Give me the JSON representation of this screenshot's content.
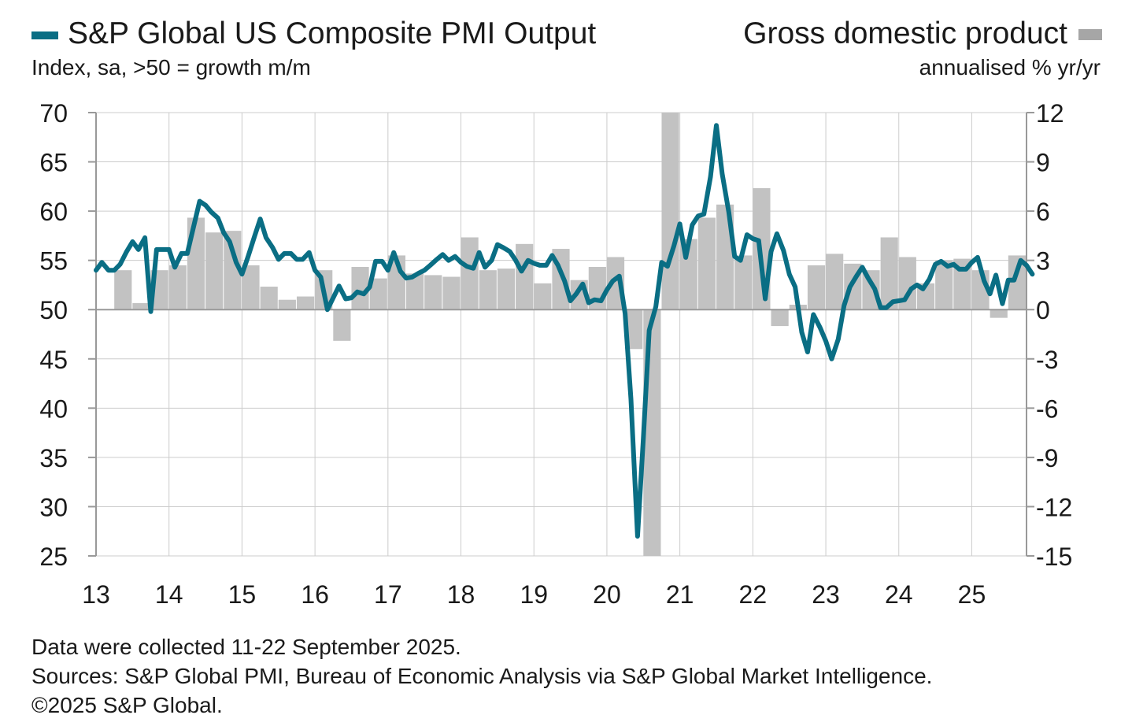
{
  "legend": {
    "line_label": "S&P Global US Composite PMI Output",
    "bar_label": "Gross domestic product",
    "left_unit": "Index, sa, >50 = growth m/m",
    "right_unit": "annualised % yr/yr"
  },
  "footer": {
    "line1": "Data were collected 11-22 September 2025.",
    "line2": "Sources: S&P Global PMI, Bureau of Economic Analysis via S&P Global Market Intelligence.",
    "line3": "©2025 S&P Global."
  },
  "colors": {
    "pmi_line": "#0a6e84",
    "gdp_bars": "#c2c2c2",
    "grid": "#cccccc",
    "axis": "#999999"
  },
  "chart_data": {
    "type": "bar+line",
    "x_range": [
      2013.0,
      2025.75
    ],
    "x_ticks": [
      {
        "value": 2013,
        "label": "13"
      },
      {
        "value": 2014,
        "label": "14"
      },
      {
        "value": 2015,
        "label": "15"
      },
      {
        "value": 2016,
        "label": "16"
      },
      {
        "value": 2017,
        "label": "17"
      },
      {
        "value": 2018,
        "label": "18"
      },
      {
        "value": 2019,
        "label": "19"
      },
      {
        "value": 2020,
        "label": "20"
      },
      {
        "value": 2021,
        "label": "21"
      },
      {
        "value": 2022,
        "label": "22"
      },
      {
        "value": 2023,
        "label": "23"
      },
      {
        "value": 2024,
        "label": "24"
      },
      {
        "value": 2025,
        "label": "25"
      }
    ],
    "y_left": {
      "min": 25,
      "max": 70,
      "ticks": [
        "70",
        "65",
        "60",
        "55",
        "50",
        "45",
        "40",
        "35",
        "30",
        "25"
      ]
    },
    "y_right": {
      "min": -15,
      "max": 12,
      "ticks": [
        "12",
        "9",
        "6",
        "3",
        "0",
        "-3",
        "-6",
        "-9",
        "-12",
        "-15"
      ]
    },
    "grid": true,
    "gdp_series": {
      "name": "Gross domestic product",
      "axis": "right",
      "quarters": [
        {
          "x": 2013.0,
          "value": 0.0
        },
        {
          "x": 2013.25,
          "value": 2.4
        },
        {
          "x": 2013.5,
          "value": 0.4
        },
        {
          "x": 2013.75,
          "value": 2.4
        },
        {
          "x": 2014.0,
          "value": 2.7
        },
        {
          "x": 2014.25,
          "value": 5.6
        },
        {
          "x": 2014.5,
          "value": 4.7
        },
        {
          "x": 2014.75,
          "value": 4.8
        },
        {
          "x": 2015.0,
          "value": 2.7
        },
        {
          "x": 2015.25,
          "value": 1.4
        },
        {
          "x": 2015.5,
          "value": 0.6
        },
        {
          "x": 2015.75,
          "value": 0.8
        },
        {
          "x": 2016.0,
          "value": 2.4
        },
        {
          "x": 2016.25,
          "value": -1.9
        },
        {
          "x": 2016.5,
          "value": 2.6
        },
        {
          "x": 2016.75,
          "value": 1.9
        },
        {
          "x": 2017.0,
          "value": 3.3
        },
        {
          "x": 2017.25,
          "value": 2.2
        },
        {
          "x": 2017.5,
          "value": 2.1
        },
        {
          "x": 2017.75,
          "value": 2.0
        },
        {
          "x": 2018.0,
          "value": 4.4
        },
        {
          "x": 2018.25,
          "value": 2.4
        },
        {
          "x": 2018.5,
          "value": 2.5
        },
        {
          "x": 2018.75,
          "value": 4.0
        },
        {
          "x": 2019.0,
          "value": 1.6
        },
        {
          "x": 2019.25,
          "value": 3.7
        },
        {
          "x": 2019.5,
          "value": 1.8
        },
        {
          "x": 2019.75,
          "value": 2.6
        },
        {
          "x": 2020.0,
          "value": 3.2
        },
        {
          "x": 2020.25,
          "value": -2.4
        },
        {
          "x": 2020.5,
          "value": -15.0
        },
        {
          "x": 2020.75,
          "value": 12.0
        },
        {
          "x": 2021.0,
          "value": 4.3
        },
        {
          "x": 2021.25,
          "value": 5.6
        },
        {
          "x": 2021.5,
          "value": 6.4
        },
        {
          "x": 2021.75,
          "value": 3.3
        },
        {
          "x": 2022.0,
          "value": 7.4
        },
        {
          "x": 2022.25,
          "value": -1.0
        },
        {
          "x": 2022.5,
          "value": 0.3
        },
        {
          "x": 2022.75,
          "value": 2.7
        },
        {
          "x": 2023.0,
          "value": 3.4
        },
        {
          "x": 2023.25,
          "value": 2.8
        },
        {
          "x": 2023.5,
          "value": 2.4
        },
        {
          "x": 2023.75,
          "value": 4.4
        },
        {
          "x": 2024.0,
          "value": 3.2
        },
        {
          "x": 2024.25,
          "value": 1.6
        },
        {
          "x": 2024.5,
          "value": 3.0
        },
        {
          "x": 2024.75,
          "value": 3.1
        },
        {
          "x": 2025.0,
          "value": 2.4
        },
        {
          "x": 2025.25,
          "value": -0.5
        },
        {
          "x": 2025.5,
          "value": 3.3
        }
      ]
    },
    "pmi_series": {
      "name": "S&P Global US Composite PMI Output",
      "axis": "left",
      "points": [
        [
          2013.0,
          54.0
        ],
        [
          2013.08,
          54.8
        ],
        [
          2013.17,
          54.0
        ],
        [
          2013.25,
          54.0
        ],
        [
          2013.33,
          54.6
        ],
        [
          2013.42,
          55.9
        ],
        [
          2013.5,
          56.9
        ],
        [
          2013.58,
          56.1
        ],
        [
          2013.67,
          57.3
        ],
        [
          2013.75,
          49.8
        ],
        [
          2013.83,
          56.1
        ],
        [
          2013.92,
          56.1
        ],
        [
          2014.0,
          56.1
        ],
        [
          2014.08,
          54.3
        ],
        [
          2014.17,
          55.7
        ],
        [
          2014.25,
          55.7
        ],
        [
          2014.33,
          58.2
        ],
        [
          2014.42,
          61.0
        ],
        [
          2014.5,
          60.6
        ],
        [
          2014.58,
          59.9
        ],
        [
          2014.67,
          59.3
        ],
        [
          2014.75,
          57.8
        ],
        [
          2014.83,
          56.9
        ],
        [
          2014.92,
          54.8
        ],
        [
          2015.0,
          53.6
        ],
        [
          2015.08,
          55.3
        ],
        [
          2015.17,
          57.4
        ],
        [
          2015.25,
          59.2
        ],
        [
          2015.33,
          57.3
        ],
        [
          2015.42,
          56.3
        ],
        [
          2015.5,
          55.1
        ],
        [
          2015.58,
          55.7
        ],
        [
          2015.67,
          55.7
        ],
        [
          2015.75,
          55.1
        ],
        [
          2015.83,
          55.1
        ],
        [
          2015.92,
          55.8
        ],
        [
          2016.0,
          54.0
        ],
        [
          2016.08,
          53.3
        ],
        [
          2016.17,
          50.0
        ],
        [
          2016.25,
          51.2
        ],
        [
          2016.33,
          52.4
        ],
        [
          2016.42,
          51.1
        ],
        [
          2016.5,
          51.2
        ],
        [
          2016.58,
          51.8
        ],
        [
          2016.67,
          51.6
        ],
        [
          2016.75,
          52.3
        ],
        [
          2016.83,
          54.9
        ],
        [
          2016.92,
          54.9
        ],
        [
          2017.0,
          54.0
        ],
        [
          2017.08,
          55.8
        ],
        [
          2017.17,
          53.9
        ],
        [
          2017.25,
          53.2
        ],
        [
          2017.33,
          53.3
        ],
        [
          2017.42,
          53.7
        ],
        [
          2017.5,
          54.0
        ],
        [
          2017.58,
          54.5
        ],
        [
          2017.67,
          55.1
        ],
        [
          2017.75,
          55.6
        ],
        [
          2017.83,
          55.0
        ],
        [
          2017.92,
          55.4
        ],
        [
          2018.0,
          54.8
        ],
        [
          2018.08,
          54.4
        ],
        [
          2018.17,
          54.2
        ],
        [
          2018.25,
          55.8
        ],
        [
          2018.33,
          54.3
        ],
        [
          2018.42,
          55.0
        ],
        [
          2018.5,
          56.6
        ],
        [
          2018.58,
          56.3
        ],
        [
          2018.67,
          55.9
        ],
        [
          2018.75,
          55.0
        ],
        [
          2018.83,
          53.9
        ],
        [
          2018.92,
          55.0
        ],
        [
          2019.0,
          54.7
        ],
        [
          2019.08,
          54.5
        ],
        [
          2019.17,
          54.5
        ],
        [
          2019.25,
          55.5
        ],
        [
          2019.33,
          54.5
        ],
        [
          2019.42,
          52.9
        ],
        [
          2019.5,
          50.9
        ],
        [
          2019.58,
          51.6
        ],
        [
          2019.67,
          52.6
        ],
        [
          2019.75,
          50.7
        ],
        [
          2019.83,
          51.0
        ],
        [
          2019.92,
          50.9
        ],
        [
          2020.0,
          52.0
        ],
        [
          2020.08,
          52.9
        ],
        [
          2020.17,
          53.4
        ],
        [
          2020.25,
          49.6
        ],
        [
          2020.33,
          40.9
        ],
        [
          2020.42,
          27.0
        ],
        [
          2020.5,
          37.0
        ],
        [
          2020.58,
          47.9
        ],
        [
          2020.67,
          50.3
        ],
        [
          2020.75,
          54.8
        ],
        [
          2020.83,
          54.4
        ],
        [
          2020.92,
          56.5
        ],
        [
          2021.0,
          58.7
        ],
        [
          2021.08,
          55.3
        ],
        [
          2021.17,
          58.6
        ],
        [
          2021.25,
          59.5
        ],
        [
          2021.33,
          59.7
        ],
        [
          2021.42,
          63.5
        ],
        [
          2021.5,
          68.7
        ],
        [
          2021.58,
          63.8
        ],
        [
          2021.67,
          59.9
        ],
        [
          2021.75,
          55.4
        ],
        [
          2021.83,
          55.0
        ],
        [
          2021.92,
          57.6
        ],
        [
          2022.0,
          57.2
        ],
        [
          2022.08,
          57.0
        ],
        [
          2022.17,
          51.1
        ],
        [
          2022.25,
          55.9
        ],
        [
          2022.33,
          57.7
        ],
        [
          2022.42,
          56.0
        ],
        [
          2022.5,
          53.6
        ],
        [
          2022.58,
          52.3
        ],
        [
          2022.67,
          47.7
        ],
        [
          2022.75,
          45.7
        ],
        [
          2022.83,
          49.5
        ],
        [
          2022.92,
          48.2
        ],
        [
          2023.0,
          46.8
        ],
        [
          2023.08,
          45.0
        ],
        [
          2023.17,
          47.0
        ],
        [
          2023.25,
          50.4
        ],
        [
          2023.33,
          52.3
        ],
        [
          2023.42,
          53.4
        ],
        [
          2023.5,
          54.3
        ],
        [
          2023.58,
          53.2
        ],
        [
          2023.67,
          52.1
        ],
        [
          2023.75,
          50.2
        ],
        [
          2023.83,
          50.2
        ],
        [
          2023.92,
          50.8
        ],
        [
          2024.0,
          50.9
        ],
        [
          2024.08,
          51.0
        ],
        [
          2024.17,
          52.1
        ],
        [
          2024.25,
          52.5
        ],
        [
          2024.33,
          52.1
        ],
        [
          2024.42,
          53.1
        ],
        [
          2024.5,
          54.6
        ],
        [
          2024.58,
          54.9
        ],
        [
          2024.67,
          54.4
        ],
        [
          2024.75,
          54.6
        ],
        [
          2024.83,
          54.1
        ],
        [
          2024.92,
          54.1
        ],
        [
          2025.0,
          54.8
        ],
        [
          2025.08,
          55.3
        ],
        [
          2025.17,
          52.9
        ],
        [
          2025.25,
          51.6
        ],
        [
          2025.33,
          53.5
        ],
        [
          2025.42,
          50.6
        ],
        [
          2025.5,
          53.0
        ],
        [
          2025.58,
          53.0
        ],
        [
          2025.67,
          55.0
        ],
        [
          2025.75,
          54.5
        ],
        [
          2025.83,
          53.6
        ]
      ]
    }
  }
}
